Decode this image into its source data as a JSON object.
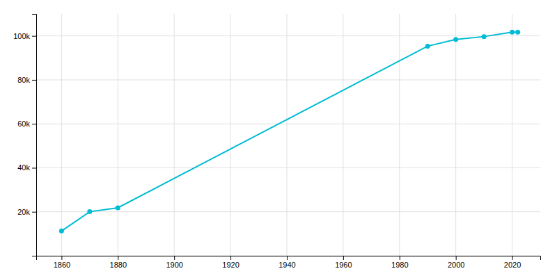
{
  "chart_data": {
    "type": "line",
    "x": [
      1860,
      1870,
      1880,
      1990,
      2000,
      2010,
      2020,
      2022
    ],
    "values": [
      11267,
      20038,
      21831,
      95333,
      98359,
      99685,
      101724,
      101724
    ],
    "color": "#00BCD4",
    "marker": "circle",
    "xlim": [
      1851,
      2030
    ],
    "ylim": [
      0,
      110000
    ],
    "xticks": [
      1860,
      1880,
      1900,
      1920,
      1940,
      1960,
      1980,
      2000,
      2020
    ],
    "yticks": [
      {
        "value": 0,
        "label": null
      },
      {
        "value": 20000,
        "label": "20k"
      },
      {
        "value": 40000,
        "label": "40k"
      },
      {
        "value": 60000,
        "label": "60k"
      },
      {
        "value": 80000,
        "label": "80k"
      },
      {
        "value": 100000,
        "label": "100k"
      }
    ],
    "grid": true
  }
}
